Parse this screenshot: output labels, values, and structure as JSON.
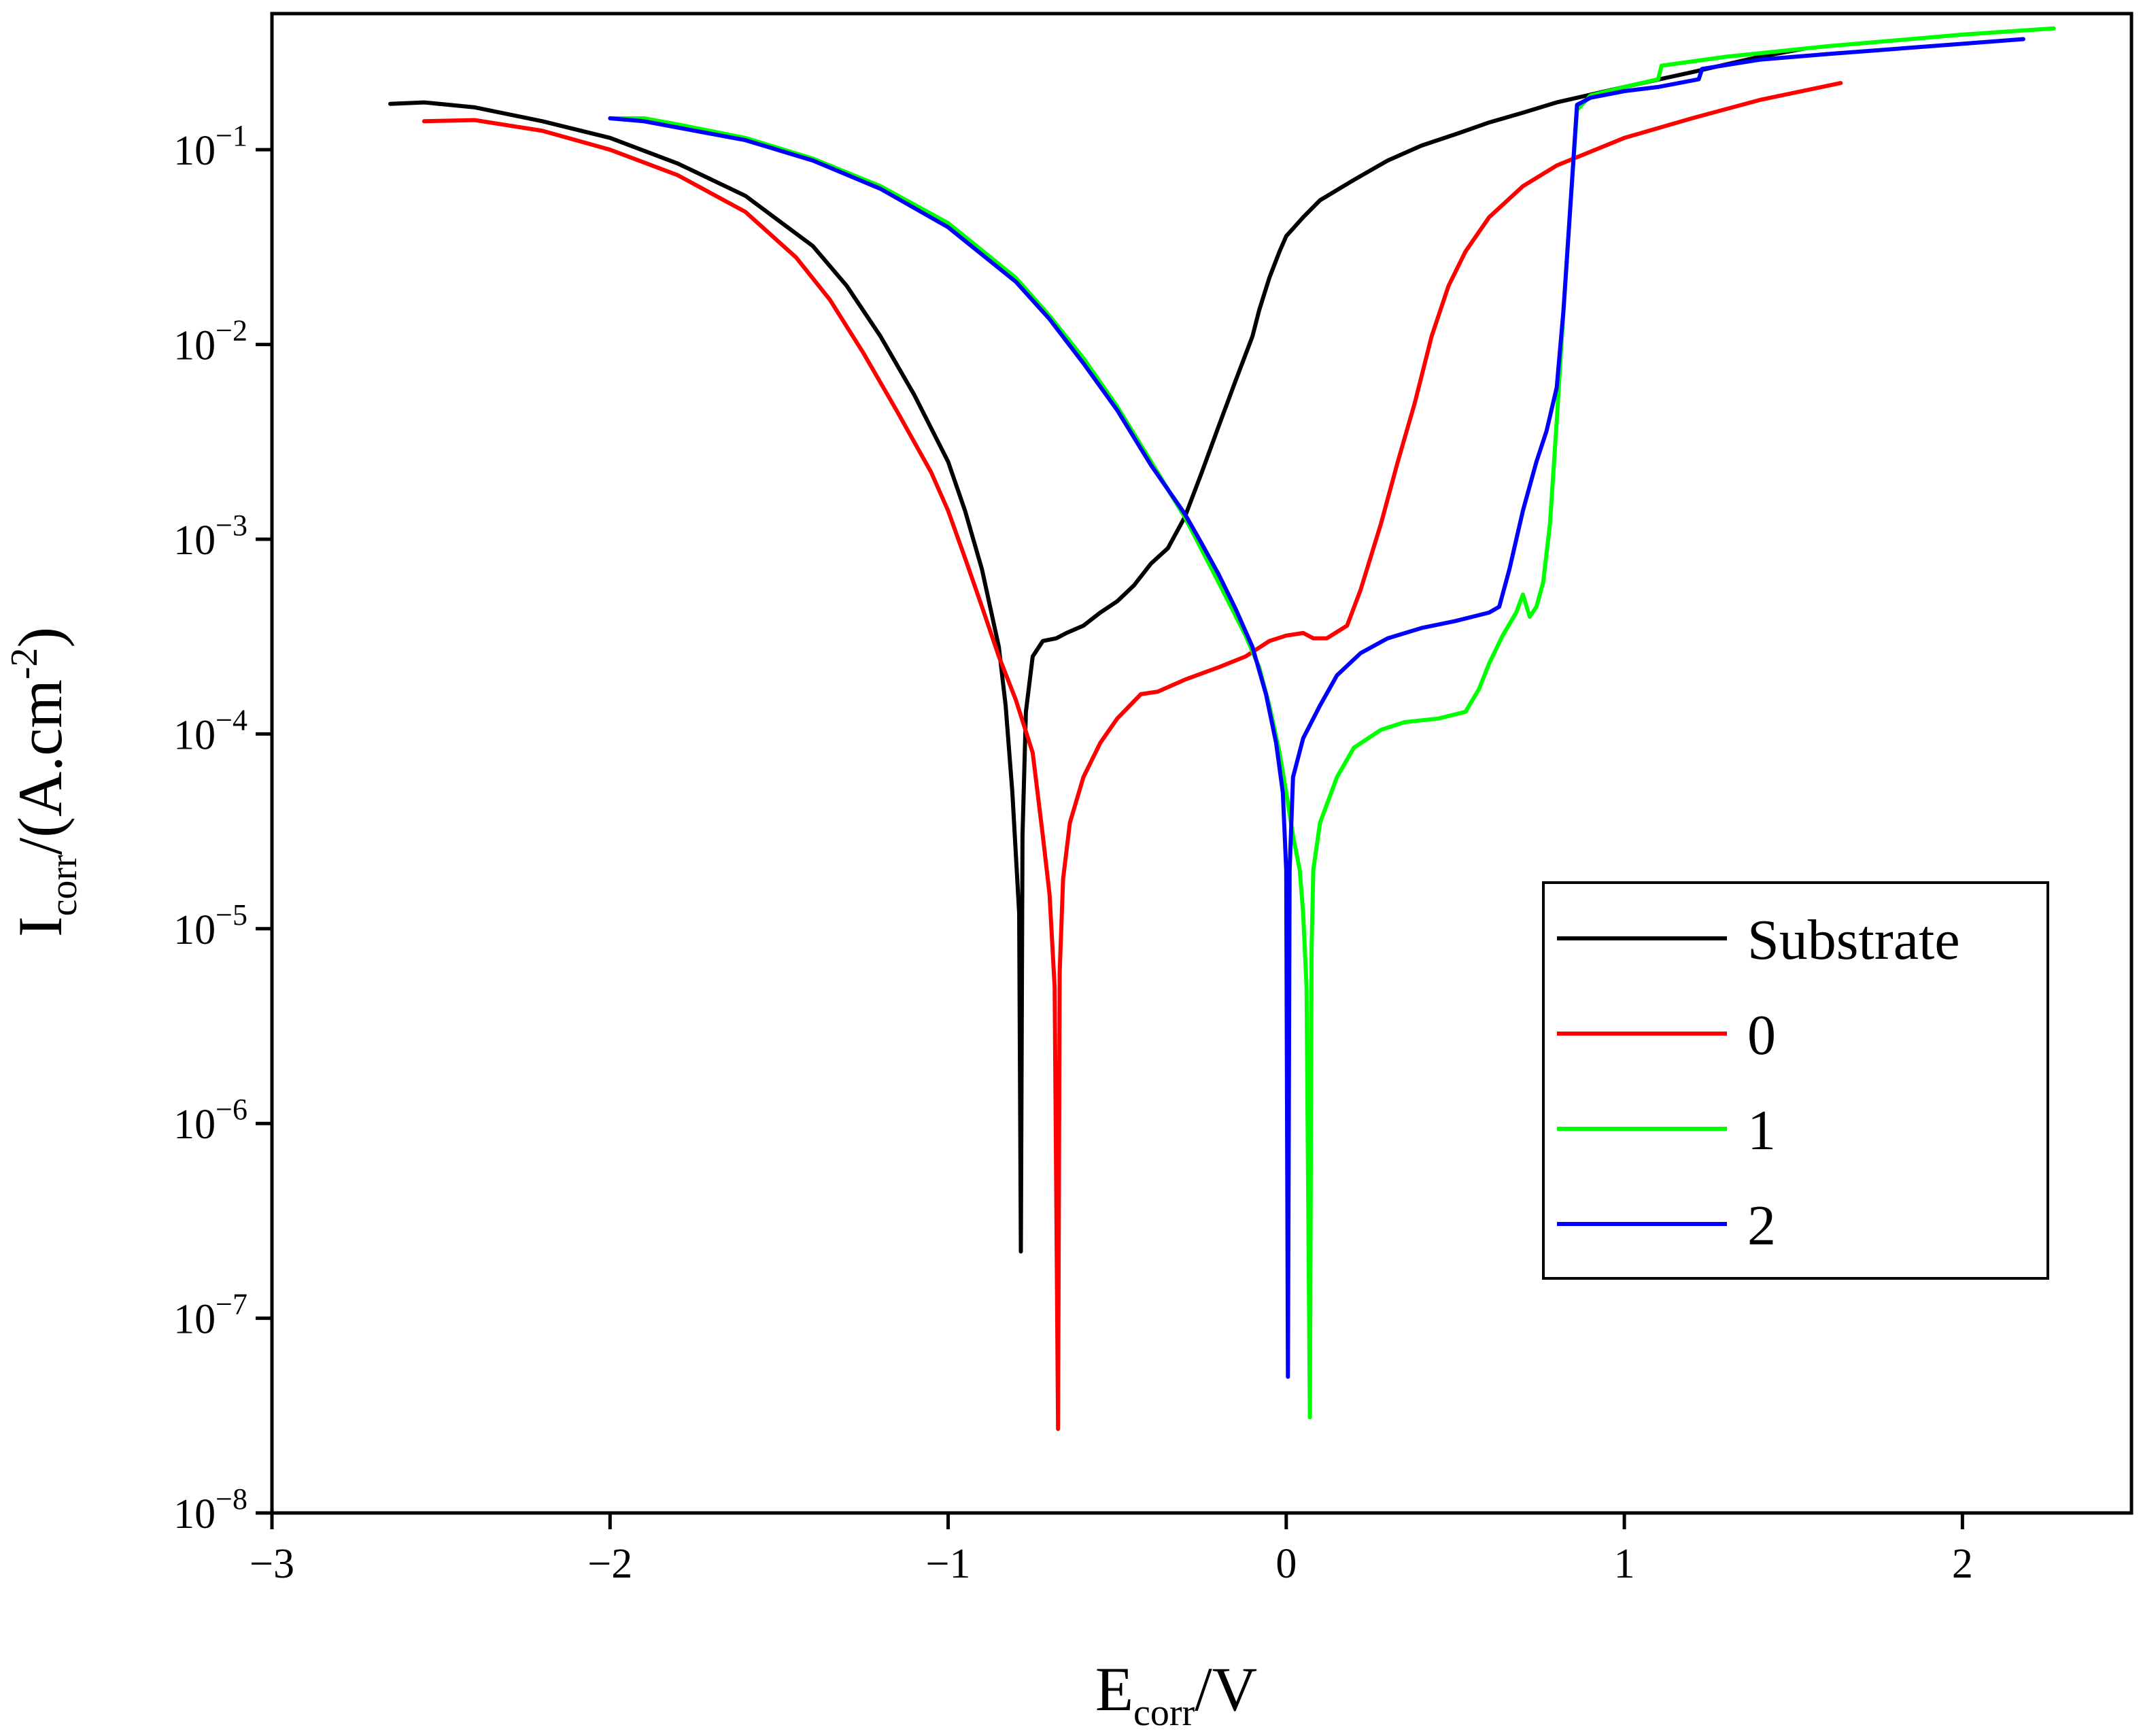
{
  "chart_data": {
    "type": "line",
    "title": "",
    "xlabel": {
      "main": "E",
      "sub": "corr",
      "rest": "/V"
    },
    "ylabel": {
      "main": "I",
      "sub": "corr",
      "rest": "/(A.cm",
      "sup": "-2",
      "close": ")"
    },
    "xlim": [
      -3,
      2.5
    ],
    "ylim": [
      1e-08,
      0.5
    ],
    "yscale": "log",
    "grid": false,
    "legend_position": "right",
    "x_ticks": [
      {
        "value": -3,
        "label": "−3"
      },
      {
        "value": -2,
        "label": "−2"
      },
      {
        "value": -1,
        "label": "−1"
      },
      {
        "value": 0,
        "label": "0"
      },
      {
        "value": 1,
        "label": "1"
      },
      {
        "value": 2,
        "label": "2"
      }
    ],
    "y_ticks": [
      {
        "value": 1e-08,
        "base": "10",
        "exp": "−8"
      },
      {
        "value": 1e-07,
        "base": "10",
        "exp": "−7"
      },
      {
        "value": 1e-06,
        "base": "10",
        "exp": "−6"
      },
      {
        "value": 1e-05,
        "base": "10",
        "exp": "−5"
      },
      {
        "value": 0.0001,
        "base": "10",
        "exp": "−4"
      },
      {
        "value": 0.001,
        "base": "10",
        "exp": "−3"
      },
      {
        "value": 0.01,
        "base": "10",
        "exp": "−2"
      },
      {
        "value": 0.1,
        "base": "10",
        "exp": "−1"
      }
    ],
    "series": [
      {
        "name": "Substrate",
        "color": "#000000",
        "points": [
          [
            -2.65,
            0.172
          ],
          [
            -2.55,
            0.175
          ],
          [
            -2.4,
            0.165
          ],
          [
            -2.2,
            0.14
          ],
          [
            -2.0,
            0.115
          ],
          [
            -1.8,
            0.085
          ],
          [
            -1.6,
            0.058
          ],
          [
            -1.4,
            0.032
          ],
          [
            -1.3,
            0.02
          ],
          [
            -1.2,
            0.011
          ],
          [
            -1.1,
            0.0055
          ],
          [
            -1.0,
            0.0025
          ],
          [
            -0.95,
            0.0014
          ],
          [
            -0.9,
            0.0007
          ],
          [
            -0.85,
            0.00028
          ],
          [
            -0.83,
            0.00014
          ],
          [
            -0.81,
            5e-05
          ],
          [
            -0.79,
            1.2e-05
          ],
          [
            -0.785,
            2.2e-07
          ],
          [
            -0.78,
            3e-05
          ],
          [
            -0.77,
            0.00013
          ],
          [
            -0.75,
            0.00025
          ],
          [
            -0.72,
            0.0003
          ],
          [
            -0.68,
            0.00031
          ],
          [
            -0.65,
            0.00033
          ],
          [
            -0.6,
            0.00036
          ],
          [
            -0.55,
            0.00042
          ],
          [
            -0.5,
            0.00048
          ],
          [
            -0.45,
            0.00058
          ],
          [
            -0.4,
            0.00075
          ],
          [
            -0.35,
            0.0009
          ],
          [
            -0.3,
            0.0013
          ],
          [
            -0.25,
            0.0022
          ],
          [
            -0.2,
            0.0038
          ],
          [
            -0.15,
            0.0065
          ],
          [
            -0.1,
            0.011
          ],
          [
            -0.08,
            0.015
          ],
          [
            -0.05,
            0.022
          ],
          [
            -0.02,
            0.03
          ],
          [
            0.0,
            0.036
          ],
          [
            0.05,
            0.045
          ],
          [
            0.1,
            0.055
          ],
          [
            0.2,
            0.07
          ],
          [
            0.3,
            0.088
          ],
          [
            0.4,
            0.105
          ],
          [
            0.5,
            0.12
          ],
          [
            0.6,
            0.138
          ],
          [
            0.7,
            0.155
          ],
          [
            0.8,
            0.175
          ],
          [
            1.0,
            0.21
          ],
          [
            1.2,
            0.25
          ],
          [
            1.4,
            0.3
          ],
          [
            1.53,
            0.33
          ]
        ]
      },
      {
        "name": "0",
        "color": "#ff0000",
        "points": [
          [
            -2.55,
            0.14
          ],
          [
            -2.4,
            0.142
          ],
          [
            -2.2,
            0.125
          ],
          [
            -2.0,
            0.1
          ],
          [
            -1.8,
            0.074
          ],
          [
            -1.6,
            0.048
          ],
          [
            -1.45,
            0.028
          ],
          [
            -1.35,
            0.017
          ],
          [
            -1.25,
            0.009
          ],
          [
            -1.15,
            0.0045
          ],
          [
            -1.05,
            0.0022
          ],
          [
            -1.0,
            0.0014
          ],
          [
            -0.95,
            0.0008
          ],
          [
            -0.9,
            0.00045
          ],
          [
            -0.85,
            0.00025
          ],
          [
            -0.8,
            0.00015
          ],
          [
            -0.75,
            8e-05
          ],
          [
            -0.72,
            3e-05
          ],
          [
            -0.7,
            1.5e-05
          ],
          [
            -0.685,
            5e-06
          ],
          [
            -0.675,
            2.7e-08
          ],
          [
            -0.67,
            6e-06
          ],
          [
            -0.66,
            1.8e-05
          ],
          [
            -0.64,
            3.5e-05
          ],
          [
            -0.6,
            6e-05
          ],
          [
            -0.55,
            9e-05
          ],
          [
            -0.5,
            0.00012
          ],
          [
            -0.43,
            0.00016
          ],
          [
            -0.38,
            0.000165
          ],
          [
            -0.3,
            0.00019
          ],
          [
            -0.2,
            0.00022
          ],
          [
            -0.12,
            0.00025
          ],
          [
            -0.05,
            0.0003
          ],
          [
            0.0,
            0.00032
          ],
          [
            0.05,
            0.00033
          ],
          [
            0.08,
            0.00031
          ],
          [
            0.12,
            0.00031
          ],
          [
            0.18,
            0.00036
          ],
          [
            0.22,
            0.00055
          ],
          [
            0.28,
            0.0012
          ],
          [
            0.33,
            0.0025
          ],
          [
            0.38,
            0.005
          ],
          [
            0.43,
            0.011
          ],
          [
            0.48,
            0.02
          ],
          [
            0.53,
            0.03
          ],
          [
            0.6,
            0.045
          ],
          [
            0.7,
            0.065
          ],
          [
            0.8,
            0.083
          ],
          [
            1.0,
            0.115
          ],
          [
            1.2,
            0.145
          ],
          [
            1.4,
            0.18
          ],
          [
            1.64,
            0.22
          ]
        ]
      },
      {
        "name": "1",
        "color": "#00ff00",
        "points": [
          [
            -2.0,
            0.145
          ],
          [
            -1.9,
            0.145
          ],
          [
            -1.8,
            0.135
          ],
          [
            -1.6,
            0.115
          ],
          [
            -1.4,
            0.09
          ],
          [
            -1.2,
            0.065
          ],
          [
            -1.0,
            0.042
          ],
          [
            -0.8,
            0.022
          ],
          [
            -0.7,
            0.014
          ],
          [
            -0.6,
            0.0085
          ],
          [
            -0.5,
            0.0048
          ],
          [
            -0.4,
            0.0025
          ],
          [
            -0.3,
            0.0013
          ],
          [
            -0.2,
            0.0006
          ],
          [
            -0.12,
            0.00032
          ],
          [
            -0.08,
            0.00022
          ],
          [
            -0.05,
            0.00014
          ],
          [
            -0.02,
            8e-05
          ],
          [
            0.0,
            5e-05
          ],
          [
            0.02,
            3e-05
          ],
          [
            0.04,
            2e-05
          ],
          [
            0.05,
            1.2e-05
          ],
          [
            0.06,
            5e-06
          ],
          [
            0.07,
            3.1e-08
          ],
          [
            0.075,
            8e-06
          ],
          [
            0.08,
            2e-05
          ],
          [
            0.1,
            3.5e-05
          ],
          [
            0.15,
            6e-05
          ],
          [
            0.2,
            8.5e-05
          ],
          [
            0.28,
            0.000105
          ],
          [
            0.35,
            0.000115
          ],
          [
            0.45,
            0.00012
          ],
          [
            0.53,
            0.00013
          ],
          [
            0.57,
            0.00017
          ],
          [
            0.6,
            0.00023
          ],
          [
            0.64,
            0.00032
          ],
          [
            0.68,
            0.00042
          ],
          [
            0.7,
            0.00052
          ],
          [
            0.72,
            0.0004
          ],
          [
            0.74,
            0.00045
          ],
          [
            0.76,
            0.0006
          ],
          [
            0.78,
            0.0012
          ],
          [
            0.8,
            0.004
          ],
          [
            0.82,
            0.015
          ],
          [
            0.84,
            0.05
          ],
          [
            0.86,
            0.16
          ],
          [
            0.9,
            0.19
          ],
          [
            1.0,
            0.21
          ],
          [
            1.1,
            0.23
          ],
          [
            1.11,
            0.27
          ],
          [
            1.3,
            0.3
          ],
          [
            1.6,
            0.34
          ],
          [
            2.0,
            0.39
          ],
          [
            2.27,
            0.42
          ]
        ]
      },
      {
        "name": "2",
        "color": "#0000ff",
        "points": [
          [
            -2.0,
            0.145
          ],
          [
            -1.9,
            0.14
          ],
          [
            -1.8,
            0.13
          ],
          [
            -1.6,
            0.112
          ],
          [
            -1.4,
            0.088
          ],
          [
            -1.2,
            0.063
          ],
          [
            -1.0,
            0.04
          ],
          [
            -0.8,
            0.021
          ],
          [
            -0.7,
            0.0135
          ],
          [
            -0.6,
            0.008
          ],
          [
            -0.5,
            0.0046
          ],
          [
            -0.4,
            0.0024
          ],
          [
            -0.3,
            0.00135
          ],
          [
            -0.25,
            0.00095
          ],
          [
            -0.2,
            0.00066
          ],
          [
            -0.15,
            0.00044
          ],
          [
            -0.1,
            0.00028
          ],
          [
            -0.06,
            0.00016
          ],
          [
            -0.03,
            9e-05
          ],
          [
            -0.01,
            5e-05
          ],
          [
            0.0,
            2e-05
          ],
          [
            0.005,
            5e-08
          ],
          [
            0.01,
            2e-05
          ],
          [
            0.02,
            6e-05
          ],
          [
            0.05,
            9.5e-05
          ],
          [
            0.1,
            0.00014
          ],
          [
            0.15,
            0.0002
          ],
          [
            0.22,
            0.00026
          ],
          [
            0.3,
            0.00031
          ],
          [
            0.4,
            0.00035
          ],
          [
            0.5,
            0.00038
          ],
          [
            0.6,
            0.00042
          ],
          [
            0.63,
            0.00045
          ],
          [
            0.66,
            0.0007
          ],
          [
            0.7,
            0.0014
          ],
          [
            0.74,
            0.0025
          ],
          [
            0.77,
            0.0036
          ],
          [
            0.8,
            0.006
          ],
          [
            0.82,
            0.015
          ],
          [
            0.84,
            0.05
          ],
          [
            0.86,
            0.17
          ],
          [
            0.9,
            0.185
          ],
          [
            1.0,
            0.2
          ],
          [
            1.1,
            0.21
          ],
          [
            1.22,
            0.23
          ],
          [
            1.23,
            0.26
          ],
          [
            1.4,
            0.29
          ],
          [
            1.6,
            0.31
          ],
          [
            2.0,
            0.35
          ],
          [
            2.18,
            0.37
          ]
        ]
      }
    ]
  }
}
